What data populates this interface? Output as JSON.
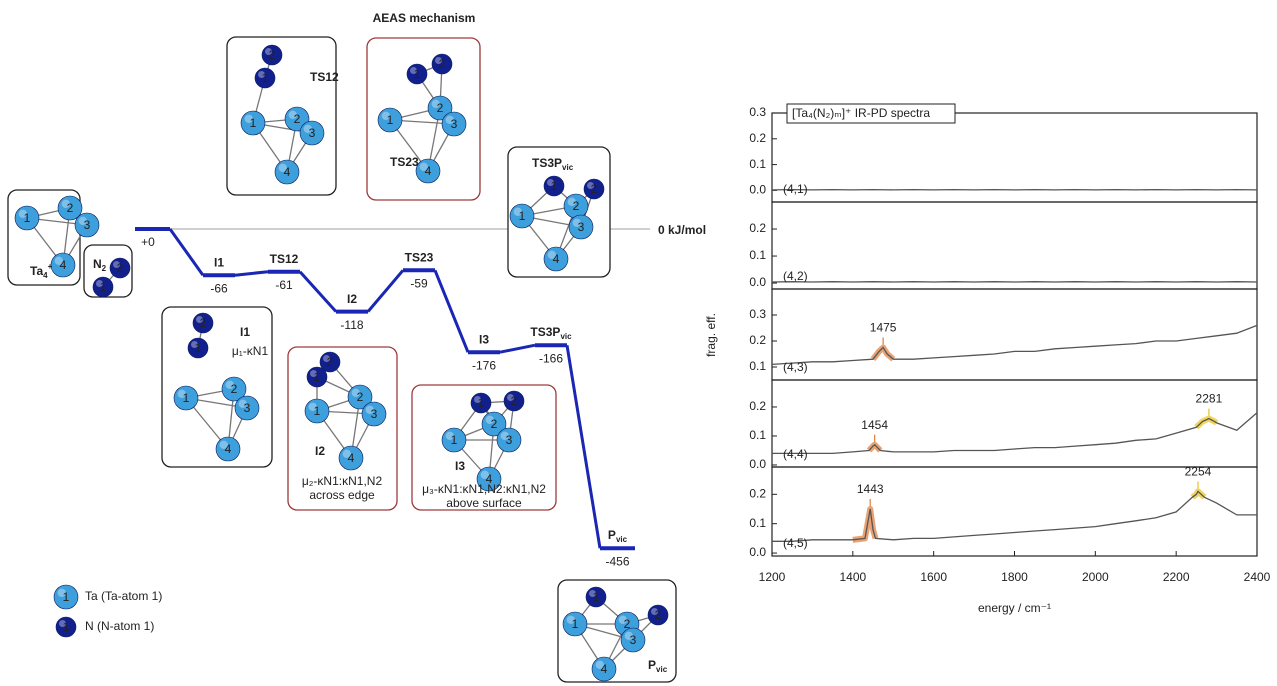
{
  "chart_data": [
    {
      "type": "energy-profile",
      "title": "AEAS mechanism",
      "title_color": "#e8a2aa",
      "color": "#1a26b4",
      "reference_label": "0 kJ/mol",
      "reference_color": "#c0c0c0",
      "categories": [
        null,
        "I1",
        "TS12",
        "I2",
        "TS23",
        "I3",
        {
          "text": "TS3P",
          "sub": "vic"
        },
        {
          "text": "P",
          "sub": "vic"
        }
      ],
      "values": [
        0,
        -66,
        -61,
        -118,
        -59,
        -176,
        -166,
        -456
      ],
      "value_labels": [
        "+0",
        "-66",
        "-61",
        "-118",
        "-59",
        "-176",
        "-166",
        "-456"
      ],
      "legend": [
        {
          "el": "Ta",
          "n": 1,
          "color": "#3d9fdc",
          "text": "Ta (Ta-atom 1)"
        },
        {
          "el": "N",
          "n": 1,
          "color": "#12208e",
          "text": "N (N-atom 1)"
        }
      ],
      "structures": [
        {
          "frame": "#222222",
          "label": {
            "text": "Ta",
            "sub": "4",
            "sup": "+"
          },
          "label_color": "#333333",
          "atoms": [
            {
              "el": "Ta",
              "n": 1
            },
            {
              "el": "Ta",
              "n": 2
            },
            {
              "el": "Ta",
              "n": 3
            },
            {
              "el": "Ta",
              "n": 4
            }
          ]
        },
        {
          "frame": "#222222",
          "label": {
            "text": "N",
            "sub": "2"
          },
          "label_color": "#333333",
          "atoms": [
            {
              "el": "N",
              "n": 2
            },
            {
              "el": "N",
              "n": 1
            }
          ]
        },
        {
          "frame": "#222222",
          "label": "TS12",
          "label_color": "#1a26b4",
          "atoms": [
            {
              "el": "N",
              "n": 2
            },
            {
              "el": "N",
              "n": 1
            },
            {
              "el": "Ta",
              "n": 1
            },
            {
              "el": "Ta",
              "n": 2
            },
            {
              "el": "Ta",
              "n": 3
            },
            {
              "el": "Ta",
              "n": 4
            }
          ]
        },
        {
          "frame": "#9e3a3a",
          "label": "TS23",
          "label_color": "#1a26b4",
          "atoms": [
            {
              "el": "N",
              "n": 2
            },
            {
              "el": "N",
              "n": 1
            },
            {
              "el": "Ta",
              "n": 2
            },
            {
              "el": "Ta",
              "n": 1
            },
            {
              "el": "Ta",
              "n": 3
            },
            {
              "el": "Ta",
              "n": 4
            }
          ]
        },
        {
          "frame": "#222222",
          "label": {
            "text": "TS3P",
            "sub": "vic"
          },
          "label_color": "#1a26b4",
          "atoms": [
            {
              "el": "N",
              "n": 1
            },
            {
              "el": "N",
              "n": 2
            },
            {
              "el": "Ta",
              "n": 2
            },
            {
              "el": "Ta",
              "n": 1
            },
            {
              "el": "Ta",
              "n": 3
            },
            {
              "el": "Ta",
              "n": 4
            }
          ]
        },
        {
          "frame": "#222222",
          "label": "I1",
          "label_color": "#1a26b4",
          "desc": "μ₁-κN1",
          "atoms": [
            {
              "el": "N",
              "n": 2
            },
            {
              "el": "N",
              "n": 1
            },
            {
              "el": "Ta",
              "n": 1
            },
            {
              "el": "Ta",
              "n": 2
            },
            {
              "el": "Ta",
              "n": 3
            },
            {
              "el": "Ta",
              "n": 4
            }
          ]
        },
        {
          "frame": "#9e3a3a",
          "label": "I2",
          "label_color": "#1a26b4",
          "desc": "μ₂-κN1:κN1,N2",
          "note": "across edge",
          "note_color": "#e8a2aa",
          "atoms": [
            {
              "el": "N",
              "n": 2
            },
            {
              "el": "N",
              "n": 1
            },
            {
              "el": "Ta",
              "n": 1
            },
            {
              "el": "Ta",
              "n": 2
            },
            {
              "el": "Ta",
              "n": 3
            },
            {
              "el": "Ta",
              "n": 4
            }
          ]
        },
        {
          "frame": "#9e3a3a",
          "label": "I3",
          "label_color": "#1a26b4",
          "desc": "μ₃-κN1:κN1,N2:κN1,N2",
          "note": "above surface",
          "note_color": "#e8a2aa",
          "atoms": [
            {
              "el": "N",
              "n": 1
            },
            {
              "el": "N",
              "n": 2
            },
            {
              "el": "Ta",
              "n": 2
            },
            {
              "el": "Ta",
              "n": 1
            },
            {
              "el": "Ta",
              "n": 3
            },
            {
              "el": "Ta",
              "n": 4
            }
          ]
        },
        {
          "frame": "#222222",
          "label": {
            "text": "P",
            "sub": "vic"
          },
          "label_color": "#1a26b4",
          "atoms": [
            {
              "el": "N",
              "n": 1
            },
            {
              "el": "Ta",
              "n": 1
            },
            {
              "el": "Ta",
              "n": 2
            },
            {
              "el": "N",
              "n": 2
            },
            {
              "el": "Ta",
              "n": 3
            },
            {
              "el": "Ta",
              "n": 4
            }
          ]
        }
      ]
    },
    {
      "type": "line",
      "title": "[Ta₄(N₂)ₘ]⁺ IR-PD spectra",
      "panel_label": "(4,1)",
      "color": "#555555",
      "x": [
        1200,
        1250,
        1300,
        1350,
        1400,
        1450,
        1500,
        1550,
        1600,
        1650,
        1700,
        1750,
        1800,
        1850,
        1900,
        1950,
        2000,
        2050,
        2100,
        2150,
        2200,
        2250,
        2300,
        2350,
        2400
      ],
      "values": [
        0.002,
        0.003,
        0.002,
        0.003,
        0.002,
        0.003,
        0.002,
        0.003,
        0.002,
        0.003,
        0.002,
        0.003,
        0.002,
        0.003,
        0.002,
        0.003,
        0.002,
        0.003,
        0.002,
        0.003,
        0.002,
        0.003,
        0.002,
        0.003,
        0.002
      ],
      "xlim": [
        1200,
        2400
      ],
      "ylim": [
        -0.045,
        0.3
      ],
      "yticks": [
        {
          "value": 0,
          "label": "0.0"
        },
        0.1,
        0.2,
        0.3
      ],
      "peaks": []
    },
    {
      "type": "line",
      "panel_label": "(4,2)",
      "color": "#555555",
      "x": [
        1200,
        1250,
        1300,
        1350,
        1400,
        1450,
        1500,
        1550,
        1600,
        1650,
        1700,
        1750,
        1800,
        1850,
        1900,
        1950,
        2000,
        2050,
        2100,
        2150,
        2200,
        2250,
        2300,
        2350,
        2400
      ],
      "values": [
        0.004,
        0.005,
        0.004,
        0.005,
        0.004,
        0.005,
        0.004,
        0.005,
        0.004,
        0.005,
        0.004,
        0.005,
        0.004,
        0.005,
        0.004,
        0.005,
        0.004,
        0.005,
        0.004,
        0.005,
        0.004,
        0.005,
        0.004,
        0.005,
        0.004
      ],
      "xlim": [
        1200,
        2400
      ],
      "ylim": [
        -0.022,
        0.3
      ],
      "yticks": [
        {
          "value": 0,
          "label": "0.0"
        },
        0.1,
        0.2
      ],
      "peaks": []
    },
    {
      "type": "line",
      "panel_label": "(4,3)",
      "ylabel": "frag. eff.",
      "color": "#555555",
      "x": [
        1200,
        1250,
        1300,
        1350,
        1400,
        1450,
        1465,
        1475,
        1485,
        1500,
        1550,
        1600,
        1650,
        1700,
        1750,
        1800,
        1850,
        1900,
        1950,
        2000,
        2050,
        2100,
        2150,
        2200,
        2250,
        2300,
        2350,
        2400
      ],
      "values": [
        0.11,
        0.115,
        0.12,
        0.12,
        0.125,
        0.13,
        0.16,
        0.175,
        0.15,
        0.13,
        0.13,
        0.135,
        0.14,
        0.145,
        0.15,
        0.16,
        0.16,
        0.17,
        0.175,
        0.18,
        0.185,
        0.19,
        0.2,
        0.2,
        0.21,
        0.22,
        0.23,
        0.26
      ],
      "xlim": [
        1200,
        2400
      ],
      "ylim": [
        0.05,
        0.4
      ],
      "yticks": [
        0.1,
        0.2,
        0.3
      ],
      "peaks": [
        {
          "x": 1475,
          "color": "#e07b39"
        }
      ]
    },
    {
      "type": "line",
      "panel_label": "(4,4)",
      "color": "#555555",
      "x": [
        1200,
        1250,
        1300,
        1350,
        1400,
        1440,
        1450,
        1454,
        1468,
        1500,
        1550,
        1600,
        1650,
        1700,
        1750,
        1800,
        1850,
        1900,
        1950,
        2000,
        2050,
        2100,
        2150,
        2200,
        2250,
        2265,
        2281,
        2295,
        2300,
        2350,
        2400
      ],
      "values": [
        0.04,
        0.04,
        0.04,
        0.04,
        0.045,
        0.05,
        0.065,
        0.07,
        0.05,
        0.045,
        0.045,
        0.045,
        0.05,
        0.05,
        0.05,
        0.055,
        0.06,
        0.06,
        0.065,
        0.07,
        0.075,
        0.085,
        0.09,
        0.11,
        0.13,
        0.15,
        0.16,
        0.15,
        0.145,
        0.12,
        0.18
      ],
      "xlim": [
        1200,
        2400
      ],
      "ylim": [
        -0.007,
        0.293
      ],
      "yticks": [
        {
          "value": 0,
          "label": "0.0"
        },
        0.1,
        0.2
      ],
      "peaks": [
        {
          "x": 1454,
          "color": "#e07b39"
        },
        {
          "x": 2281,
          "color": "#e8c21a"
        }
      ]
    },
    {
      "type": "line",
      "panel_label": "(4,5)",
      "xlabel": "energy / cm⁻¹",
      "color": "#555555",
      "x": [
        1200,
        1250,
        1300,
        1350,
        1400,
        1430,
        1443,
        1450,
        1456,
        1500,
        1550,
        1600,
        1650,
        1700,
        1750,
        1800,
        1850,
        1900,
        1950,
        2000,
        2050,
        2100,
        2150,
        2200,
        2240,
        2250,
        2254,
        2270,
        2300,
        2350,
        2400
      ],
      "values": [
        0.04,
        0.04,
        0.045,
        0.045,
        0.045,
        0.05,
        0.15,
        0.08,
        0.05,
        0.045,
        0.05,
        0.05,
        0.055,
        0.06,
        0.065,
        0.07,
        0.075,
        0.08,
        0.085,
        0.09,
        0.1,
        0.11,
        0.12,
        0.14,
        0.19,
        0.2,
        0.21,
        0.19,
        0.17,
        0.13,
        0.13
      ],
      "xlim": [
        1200,
        2400
      ],
      "ylim": [
        -0.01,
        0.293
      ],
      "yticks": [
        {
          "value": 0,
          "label": "0.0"
        },
        0.1,
        0.2
      ],
      "xticks": [
        1200,
        1400,
        1600,
        1800,
        2000,
        2200,
        2400
      ],
      "peaks": [
        {
          "x": 1443,
          "color": "#e07b39"
        },
        {
          "x": 2254,
          "color": "#e8c21a"
        }
      ]
    }
  ]
}
